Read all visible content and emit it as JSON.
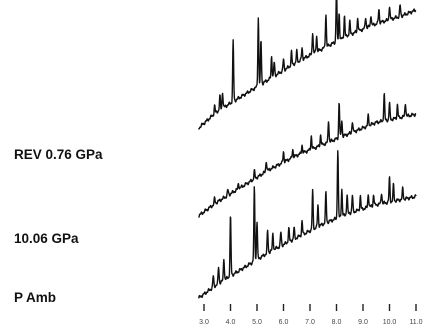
{
  "chart_data": {
    "type": "line",
    "title": "",
    "xlabel": "",
    "ylabel": "",
    "xlim": [
      2.5,
      11.25
    ],
    "x_ticks": [
      3.0,
      4.0,
      5.0,
      6.0,
      7.0,
      8.0,
      9.0,
      10.0,
      11.0
    ],
    "x_tick_labels": [
      "3.0",
      "4.0",
      "5.0",
      "6.0",
      "7.0",
      "8.0",
      "9.0",
      "10.0",
      "11.0"
    ],
    "grid": false,
    "legend": "none",
    "line_color": "#111111",
    "series": [
      {
        "name": "REV 0.76 GPa",
        "baseline": [
          [
            2.8,
            0.62
          ],
          [
            3.5,
            0.68
          ],
          [
            4.5,
            0.74
          ],
          [
            5.5,
            0.8
          ],
          [
            6.5,
            0.86
          ],
          [
            7.5,
            0.91
          ],
          [
            8.5,
            0.96
          ],
          [
            9.5,
            1.0
          ],
          [
            10.5,
            1.03
          ],
          [
            11.0,
            1.05
          ]
        ],
        "peaks": [
          [
            3.4,
            0.03
          ],
          [
            3.6,
            0.05
          ],
          [
            3.7,
            0.06
          ],
          [
            4.1,
            0.22
          ],
          [
            5.05,
            0.25
          ],
          [
            5.15,
            0.16
          ],
          [
            5.55,
            0.08
          ],
          [
            5.65,
            0.05
          ],
          [
            6.0,
            0.04
          ],
          [
            6.3,
            0.05
          ],
          [
            6.5,
            0.04
          ],
          [
            6.7,
            0.04
          ],
          [
            7.1,
            0.08
          ],
          [
            7.25,
            0.06
          ],
          [
            7.6,
            0.12
          ],
          [
            8.0,
            0.19
          ],
          [
            8.1,
            0.1
          ],
          [
            8.3,
            0.08
          ],
          [
            8.5,
            0.05
          ],
          [
            8.8,
            0.05
          ],
          [
            9.1,
            0.04
          ],
          [
            9.3,
            0.04
          ],
          [
            9.6,
            0.05
          ],
          [
            10.0,
            0.05
          ],
          [
            10.4,
            0.04
          ]
        ]
      },
      {
        "name": "10.06 GPa",
        "baseline": [
          [
            2.8,
            0.3
          ],
          [
            3.5,
            0.35
          ],
          [
            4.5,
            0.41
          ],
          [
            5.5,
            0.47
          ],
          [
            6.5,
            0.52
          ],
          [
            7.5,
            0.56
          ],
          [
            8.5,
            0.6
          ],
          [
            9.5,
            0.64
          ],
          [
            10.5,
            0.66
          ],
          [
            11.0,
            0.67
          ]
        ],
        "peaks": [
          [
            3.4,
            0.02
          ],
          [
            3.9,
            0.02
          ],
          [
            4.3,
            0.02
          ],
          [
            4.9,
            0.03
          ],
          [
            5.35,
            0.04
          ],
          [
            6.0,
            0.04
          ],
          [
            6.35,
            0.03
          ],
          [
            6.7,
            0.03
          ],
          [
            7.05,
            0.05
          ],
          [
            7.4,
            0.04
          ],
          [
            7.7,
            0.08
          ],
          [
            8.1,
            0.13
          ],
          [
            8.2,
            0.06
          ],
          [
            8.6,
            0.04
          ],
          [
            9.2,
            0.04
          ],
          [
            9.8,
            0.1
          ],
          [
            10.0,
            0.06
          ],
          [
            10.3,
            0.05
          ],
          [
            10.6,
            0.05
          ]
        ]
      },
      {
        "name": "P Amb",
        "baseline": [
          [
            2.8,
            0.0
          ],
          [
            3.5,
            0.05
          ],
          [
            4.5,
            0.11
          ],
          [
            5.5,
            0.17
          ],
          [
            6.5,
            0.22
          ],
          [
            7.5,
            0.27
          ],
          [
            8.5,
            0.31
          ],
          [
            9.5,
            0.34
          ],
          [
            10.5,
            0.36
          ],
          [
            11.0,
            0.37
          ]
        ],
        "peaks": [
          [
            3.35,
            0.04
          ],
          [
            3.55,
            0.06
          ],
          [
            3.75,
            0.08
          ],
          [
            4.0,
            0.22
          ],
          [
            4.9,
            0.27
          ],
          [
            5.0,
            0.14
          ],
          [
            5.4,
            0.08
          ],
          [
            5.6,
            0.06
          ],
          [
            5.9,
            0.05
          ],
          [
            6.2,
            0.05
          ],
          [
            6.4,
            0.04
          ],
          [
            6.7,
            0.05
          ],
          [
            7.1,
            0.14
          ],
          [
            7.3,
            0.08
          ],
          [
            7.6,
            0.11
          ],
          [
            8.05,
            0.25
          ],
          [
            8.2,
            0.1
          ],
          [
            8.4,
            0.07
          ],
          [
            8.6,
            0.06
          ],
          [
            8.9,
            0.05
          ],
          [
            9.2,
            0.05
          ],
          [
            9.4,
            0.04
          ],
          [
            9.7,
            0.04
          ],
          [
            10.0,
            0.09
          ],
          [
            10.15,
            0.06
          ],
          [
            10.5,
            0.04
          ]
        ]
      }
    ]
  }
}
